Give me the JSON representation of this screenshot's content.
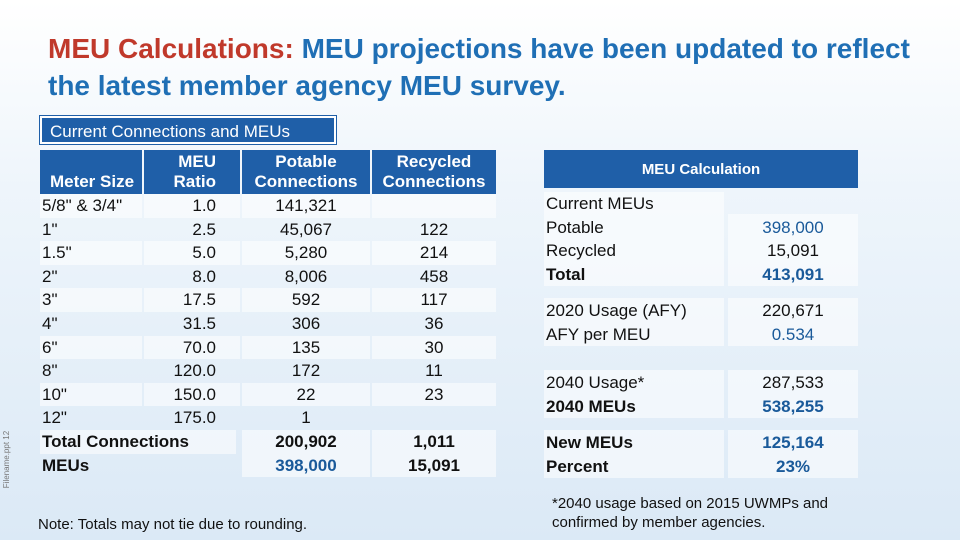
{
  "title": {
    "lead": "MEU Calculations:",
    "rest": " MEU projections have been updated to reflect the latest member agency MEU survey."
  },
  "side_text": "Filename.ppt 12",
  "tab_label": "Current Connections and MEUs",
  "left_table": {
    "headers": [
      "Meter Size",
      "MEU Ratio",
      "Potable Connections",
      "Recycled Connections"
    ],
    "rows": [
      {
        "size": "5/8\" & 3/4\"",
        "ratio": "1.0",
        "potable": "141,321",
        "recycled": ""
      },
      {
        "size": "1\"",
        "ratio": "2.5",
        "potable": "45,067",
        "recycled": "122"
      },
      {
        "size": "1.5\"",
        "ratio": "5.0",
        "potable": "5,280",
        "recycled": "214"
      },
      {
        "size": "2\"",
        "ratio": "8.0",
        "potable": "8,006",
        "recycled": "458"
      },
      {
        "size": "3\"",
        "ratio": "17.5",
        "potable": "592",
        "recycled": "117"
      },
      {
        "size": "4\"",
        "ratio": "31.5",
        "potable": "306",
        "recycled": "36"
      },
      {
        "size": "6\"",
        "ratio": "70.0",
        "potable": "135",
        "recycled": "30"
      },
      {
        "size": "8\"",
        "ratio": "120.0",
        "potable": "172",
        "recycled": "11"
      },
      {
        "size": "10\"",
        "ratio": "150.0",
        "potable": "22",
        "recycled": "23"
      },
      {
        "size": "12\"",
        "ratio": "175.0",
        "potable": "1",
        "recycled": ""
      }
    ],
    "totals": [
      {
        "label": "Total Connections",
        "potable": "200,902",
        "recycled": "1,011"
      },
      {
        "label": "MEUs",
        "potable": "398,000",
        "recycled": "15,091"
      }
    ]
  },
  "note": "Note: Totals may not tie due to rounding.",
  "right_table": {
    "header": "MEU Calculation",
    "current_heading": "Current MEUs",
    "current": [
      {
        "label": "Potable",
        "value": "398,000"
      },
      {
        "label": "Recycled",
        "value": "15,091"
      },
      {
        "label": "Total",
        "value": "413,091"
      }
    ],
    "usage2020": [
      {
        "label": "2020 Usage (AFY)",
        "value": "220,671"
      },
      {
        "label": "AFY per MEU",
        "value": "0.534"
      }
    ],
    "usage2040": [
      {
        "label": "2040 Usage*",
        "value": "287,533"
      },
      {
        "label": "2040 MEUs",
        "value": "538,255"
      }
    ],
    "new": [
      {
        "label": "New MEUs",
        "value": "125,164"
      },
      {
        "label": "Percent",
        "value": "23%"
      }
    ]
  },
  "footnote": "*2040 usage based on 2015 UWMPs and confirmed by member agencies."
}
